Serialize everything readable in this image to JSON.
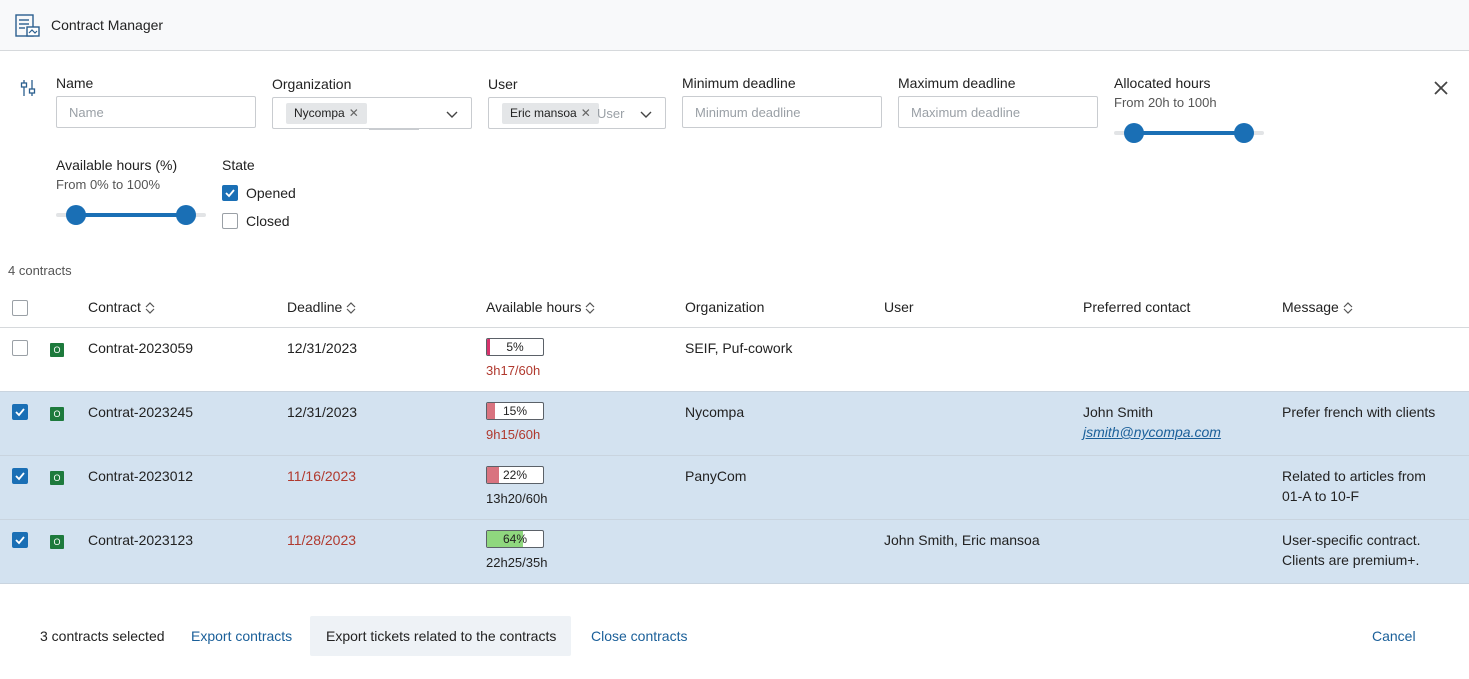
{
  "app": {
    "title": "Contract Manager"
  },
  "filters": {
    "name": {
      "label": "Name",
      "placeholder": "Name"
    },
    "organization": {
      "label": "Organization",
      "chip": "Nycompa"
    },
    "user": {
      "label": "User",
      "chip": "Eric mansoa",
      "placeholder": "User"
    },
    "min_deadline": {
      "label": "Minimum deadline",
      "placeholder": "Minimum deadline"
    },
    "max_deadline": {
      "label": "Maximum deadline",
      "placeholder": "Maximum deadline"
    },
    "allocated_hours": {
      "label": "Allocated hours",
      "range_text": "From 20h to 100h",
      "range_min_fraction": 0.0,
      "range_max_fraction": 1.0
    },
    "available_hours": {
      "label": "Available hours (%)",
      "range_text": "From 0% to 100%",
      "range_min_fraction": 0.0,
      "range_max_fraction": 1.0
    },
    "state": {
      "label": "State",
      "options": [
        {
          "label": "Opened",
          "checked": true
        },
        {
          "label": "Closed",
          "checked": false
        }
      ]
    }
  },
  "results": {
    "count_text": "4 contracts"
  },
  "table": {
    "columns": {
      "contract": "Contract",
      "deadline": "Deadline",
      "available_hours": "Available hours",
      "organization": "Organization",
      "user": "User",
      "preferred_contact": "Preferred contact",
      "message": "Message"
    },
    "rows": [
      {
        "selected": false,
        "state": "O",
        "contract": "Contrat-2023059",
        "deadline": "12/31/2023",
        "deadline_overdue": false,
        "percent_text": "5%",
        "percent": 5,
        "bar_color": "#d6336c",
        "hours": "3h17/60h",
        "hours_color": "#b0392e",
        "organization": "SEIF, Puf-cowork",
        "user": "",
        "contact_name": "",
        "contact_email": "",
        "message_lines": [
          "",
          ""
        ]
      },
      {
        "selected": true,
        "state": "O",
        "contract": "Contrat-2023245",
        "deadline": "12/31/2023",
        "deadline_overdue": false,
        "percent_text": "15%",
        "percent": 15,
        "bar_color": "#d9737f",
        "hours": "9h15/60h",
        "hours_color": "#b0392e",
        "organization": "Nycompa",
        "user": "",
        "contact_name": "John Smith",
        "contact_email": "jsmith@nycompa.com",
        "message_lines": [
          "Prefer french with clients",
          ""
        ]
      },
      {
        "selected": true,
        "state": "O",
        "contract": "Contrat-2023012",
        "deadline": "11/16/2023",
        "deadline_overdue": true,
        "percent_text": "22%",
        "percent": 22,
        "bar_color": "#d9737f",
        "hours": "13h20/60h",
        "hours_color": "#222222",
        "organization": "PanyCom",
        "user": "",
        "contact_name": "",
        "contact_email": "",
        "message_lines": [
          "Related to articles from",
          "01-A to 10-F"
        ]
      },
      {
        "selected": true,
        "state": "O",
        "contract": "Contrat-2023123",
        "deadline": "11/28/2023",
        "deadline_overdue": true,
        "percent_text": "64%",
        "percent": 64,
        "bar_color": "#8fd77e",
        "hours": "22h25/35h",
        "hours_color": "#222222",
        "organization": "",
        "user": "John Smith, Eric mansoa",
        "contact_name": "",
        "contact_email": "",
        "message_lines": [
          "User-specific contract.",
          "Clients are premium+."
        ]
      }
    ]
  },
  "footer": {
    "selected_text": "3 contracts selected",
    "export_contracts": "Export contracts",
    "export_tickets": "Export tickets related to the contracts",
    "close_contracts": "Close contracts",
    "cancel": "Cancel"
  },
  "colors": {
    "accent": "#1a6fb5",
    "selected_row": "#d3e2f0",
    "overdue": "#b0392e",
    "state_badge": "#1d7a3c"
  }
}
